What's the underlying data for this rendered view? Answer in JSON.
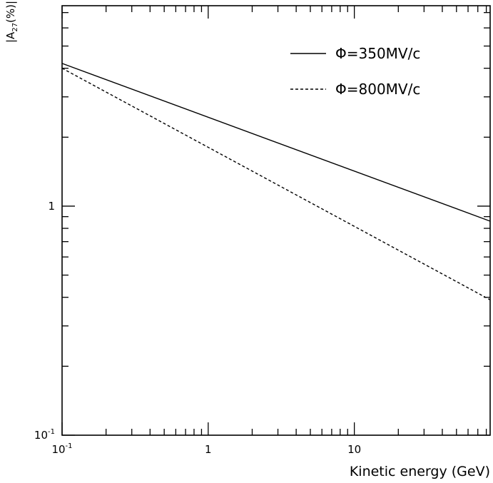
{
  "chart_data": {
    "type": "line",
    "title": "",
    "xlabel": "Kinetic energy (GeV)",
    "ylabel": "|A27(%)|",
    "ylabel_parts": {
      "pre": "|A",
      "sub": "27",
      "post": "(%)|"
    },
    "x_scale": "log",
    "y_scale": "log",
    "xlim": [
      0.1,
      85
    ],
    "ylim": [
      0.1,
      7.5
    ],
    "x_ticks": [
      {
        "value": 0.1,
        "base": "10",
        "exp": "-1"
      },
      {
        "value": 1,
        "base": "1",
        "exp": ""
      },
      {
        "value": 10,
        "base": "10",
        "exp": ""
      }
    ],
    "y_ticks": [
      {
        "value": 0.1,
        "base": "10",
        "exp": "-1"
      },
      {
        "value": 1,
        "base": "1",
        "exp": ""
      }
    ],
    "grid": false,
    "legend_position": "top-right",
    "series": [
      {
        "name": "Φ=350MV/c",
        "style": "solid",
        "x": [
          0.1,
          85
        ],
        "y": [
          4.2,
          0.86
        ]
      },
      {
        "name": "Φ=800MV/c",
        "style": "dashed",
        "x": [
          0.1,
          85
        ],
        "y": [
          4.0,
          0.39
        ]
      }
    ]
  }
}
